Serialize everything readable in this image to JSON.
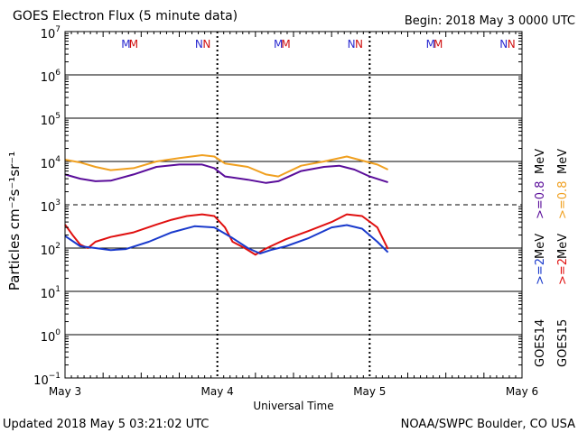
{
  "header": {
    "title": "GOES Electron Flux (5 minute data)",
    "begin": "Begin: 2018 May 3 0000 UTC"
  },
  "footer": {
    "updated": "Updated 2018 May  5 03:21:02 UTC",
    "credit": "NOAA/SWPC Boulder, CO USA"
  },
  "colors": {
    "goes14_high": "#5a0d9a",
    "goes15_high": "#f0a020",
    "goes14_low": "#1a3acc",
    "goes15_low": "#e01010",
    "marker_m14": "#2a2ad0",
    "marker_m15": "#d01010",
    "marker_n14": "#2a2ad0",
    "marker_n15": "#d01010",
    "axis": "#000000"
  },
  "chart_data": {
    "type": "line",
    "title": "GOES Electron Flux (5 minute data)",
    "xlabel": "Universal Time",
    "ylabel": "Particles cm⁻²s⁻¹sr⁻¹",
    "yscale": "log",
    "ylim_exponents": [
      -1,
      7
    ],
    "yticks": [
      {
        "base": "10",
        "exp": "7"
      },
      {
        "base": "10",
        "exp": "6"
      },
      {
        "base": "10",
        "exp": "5"
      },
      {
        "base": "10",
        "exp": "4"
      },
      {
        "base": "10",
        "exp": "3"
      },
      {
        "base": "10",
        "exp": "2"
      },
      {
        "base": "10",
        "exp": "1"
      },
      {
        "base": "10",
        "exp": "0"
      },
      {
        "base": "10",
        "exp": "−1"
      }
    ],
    "xlim_days": [
      0,
      3
    ],
    "xticks": [
      "May 3",
      "May 4",
      "May 5",
      "May 6"
    ],
    "threshold_exponent": 3,
    "markers": [
      {
        "day": 0.4,
        "label": "M",
        "satellite": "GOES14"
      },
      {
        "day": 0.45,
        "label": "M",
        "satellite": "GOES15"
      },
      {
        "day": 0.88,
        "label": "N",
        "satellite": "GOES14"
      },
      {
        "day": 0.93,
        "label": "N",
        "satellite": "GOES15"
      },
      {
        "day": 1.4,
        "label": "M",
        "satellite": "GOES14"
      },
      {
        "day": 1.45,
        "label": "M",
        "satellite": "GOES15"
      },
      {
        "day": 1.88,
        "label": "N",
        "satellite": "GOES14"
      },
      {
        "day": 1.93,
        "label": "N",
        "satellite": "GOES15"
      },
      {
        "day": 2.4,
        "label": "M",
        "satellite": "GOES14"
      },
      {
        "day": 2.45,
        "label": "M",
        "satellite": "GOES15"
      },
      {
        "day": 2.88,
        "label": "N",
        "satellite": "GOES14"
      },
      {
        "day": 2.93,
        "label": "N",
        "satellite": "GOES15"
      }
    ],
    "legend": {
      "goes14": "GOES14",
      "goes15": "GOES15",
      "low": ">=2",
      "high": ">=0.8",
      "unit": "MeV"
    },
    "series": [
      {
        "name": "GOES15 >=0.8 MeV",
        "color_key": "goes15_high",
        "x": [
          0,
          0.1,
          0.2,
          0.3,
          0.45,
          0.6,
          0.75,
          0.9,
          0.98,
          1.05,
          1.2,
          1.32,
          1.4,
          1.55,
          1.7,
          1.85,
          1.95,
          2.05,
          2.12
        ],
        "y": [
          11000,
          9500,
          7500,
          6300,
          7000,
          10000,
          12000,
          14000,
          13000,
          9000,
          7500,
          5000,
          4500,
          8000,
          10000,
          13000,
          10500,
          8500,
          6500
        ]
      },
      {
        "name": "GOES14 >=0.8 MeV",
        "color_key": "goes14_high",
        "x": [
          0,
          0.1,
          0.2,
          0.3,
          0.45,
          0.6,
          0.75,
          0.9,
          0.98,
          1.05,
          1.2,
          1.32,
          1.4,
          1.55,
          1.7,
          1.8,
          1.9,
          2.0,
          2.12
        ],
        "y": [
          5000,
          4000,
          3500,
          3600,
          5000,
          7500,
          8500,
          8500,
          7000,
          4500,
          3800,
          3200,
          3500,
          6000,
          7500,
          8000,
          6500,
          4500,
          3300
        ]
      },
      {
        "name": "GOES15 >=2 MeV",
        "color_key": "goes15_low",
        "x": [
          0,
          0.05,
          0.1,
          0.15,
          0.2,
          0.3,
          0.45,
          0.6,
          0.7,
          0.8,
          0.9,
          0.98,
          1.05,
          1.1,
          1.18,
          1.25,
          1.3,
          1.35,
          1.45,
          1.6,
          1.75,
          1.85,
          1.95,
          2.05,
          2.12
        ],
        "y": [
          350,
          200,
          120,
          100,
          140,
          180,
          230,
          350,
          450,
          550,
          600,
          550,
          300,
          140,
          100,
          70,
          90,
          110,
          160,
          250,
          400,
          600,
          550,
          300,
          95
        ]
      },
      {
        "name": "GOES14 >=2 MeV",
        "color_key": "goes14_low",
        "x": [
          0,
          0.1,
          0.2,
          0.3,
          0.4,
          0.55,
          0.7,
          0.85,
          0.98,
          1.1,
          1.2,
          1.28,
          1.35,
          1.45,
          1.6,
          1.75,
          1.85,
          1.95,
          2.05,
          2.12
        ],
        "y": [
          190,
          110,
          100,
          90,
          95,
          140,
          230,
          320,
          300,
          170,
          100,
          75,
          90,
          110,
          170,
          300,
          340,
          280,
          140,
          80
        ]
      }
    ]
  }
}
